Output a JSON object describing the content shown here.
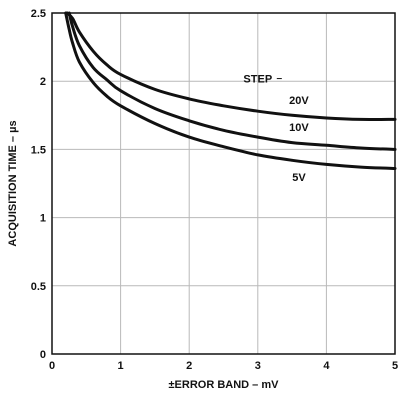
{
  "chart_data": {
    "type": "line",
    "xlabel": "±ERROR BAND – mV",
    "ylabel": "ACQUISITION TIME – µs",
    "xlim": [
      0,
      5
    ],
    "ylim": [
      0,
      2.5
    ],
    "x_ticks": [
      "0",
      "1",
      "2",
      "3",
      "4",
      "5"
    ],
    "y_ticks": [
      "0",
      "0.5",
      "1",
      "1.5",
      "2",
      "2.5"
    ],
    "x_tick_values": [
      0,
      1,
      2,
      3,
      4,
      5
    ],
    "y_tick_values": [
      0,
      0.5,
      1,
      1.5,
      2,
      2.5
    ],
    "grid": true,
    "legend_title": "STEP",
    "series": [
      {
        "name": "20V",
        "x": [
          0.22,
          0.3,
          0.4,
          0.6,
          0.8,
          1.0,
          1.5,
          2.0,
          2.5,
          3.0,
          3.5,
          4.0,
          4.5,
          5.0
        ],
        "values": [
          2.5,
          2.46,
          2.36,
          2.22,
          2.12,
          2.05,
          1.94,
          1.87,
          1.82,
          1.78,
          1.75,
          1.73,
          1.72,
          1.72
        ]
      },
      {
        "name": "10V",
        "x": [
          0.25,
          0.3,
          0.4,
          0.6,
          0.8,
          1.0,
          1.5,
          2.0,
          2.5,
          3.0,
          3.5,
          4.0,
          4.5,
          5.0
        ],
        "values": [
          2.5,
          2.4,
          2.26,
          2.1,
          2.01,
          1.93,
          1.8,
          1.71,
          1.64,
          1.59,
          1.55,
          1.53,
          1.51,
          1.5
        ]
      },
      {
        "name": "5V",
        "x": [
          0.2,
          0.25,
          0.3,
          0.4,
          0.6,
          0.8,
          1.0,
          1.5,
          2.0,
          2.5,
          3.0,
          3.5,
          4.0,
          4.5,
          5.0
        ],
        "values": [
          2.5,
          2.38,
          2.28,
          2.14,
          1.99,
          1.89,
          1.82,
          1.69,
          1.59,
          1.52,
          1.46,
          1.42,
          1.39,
          1.37,
          1.36
        ]
      }
    ],
    "series_color": "#111111",
    "grid_color": "#b9b9b9"
  }
}
